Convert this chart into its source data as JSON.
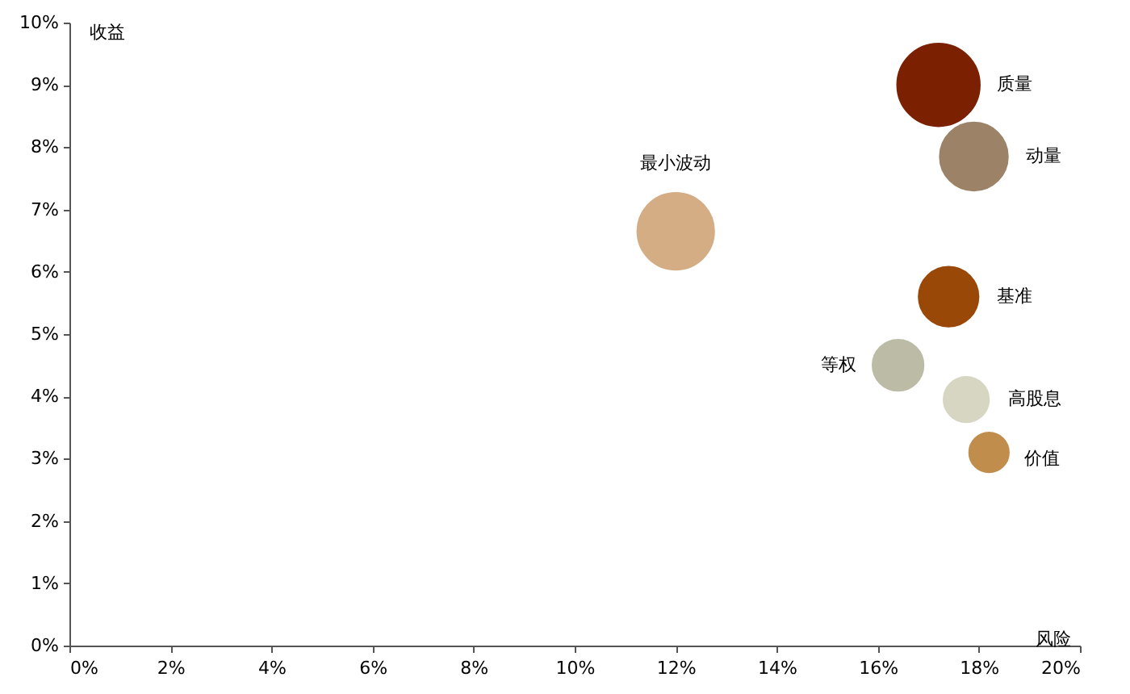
{
  "chart_data": {
    "type": "bubble",
    "xlabel": "风险",
    "ylabel": "收益",
    "xlim": [
      0,
      20
    ],
    "ylim": [
      0,
      10
    ],
    "xticks": [
      {
        "value": 0,
        "label": "0%"
      },
      {
        "value": 2,
        "label": "2%"
      },
      {
        "value": 4,
        "label": "4%"
      },
      {
        "value": 6,
        "label": "6%"
      },
      {
        "value": 8,
        "label": "8%"
      },
      {
        "value": 10,
        "label": "10%"
      },
      {
        "value": 12,
        "label": "12%"
      },
      {
        "value": 14,
        "label": "14%"
      },
      {
        "value": 16,
        "label": "16%"
      },
      {
        "value": 18,
        "label": "18%"
      },
      {
        "value": 20,
        "label": "20%"
      }
    ],
    "yticks": [
      {
        "value": 0,
        "label": "0%"
      },
      {
        "value": 1,
        "label": "1%"
      },
      {
        "value": 2,
        "label": "2%"
      },
      {
        "value": 3,
        "label": "3%"
      },
      {
        "value": 4,
        "label": "4%"
      },
      {
        "value": 5,
        "label": "5%"
      },
      {
        "value": 6,
        "label": "6%"
      },
      {
        "value": 7,
        "label": "7%"
      },
      {
        "value": 8,
        "label": "8%"
      },
      {
        "value": 9,
        "label": "9%"
      },
      {
        "value": 10,
        "label": "10%"
      }
    ],
    "grid": false,
    "series": [
      {
        "name": "质量",
        "color": "#7b2000",
        "x": [
          17.2
        ],
        "values": [
          9.0
        ],
        "sizes": [
          1
        ]
      },
      {
        "name": "动量",
        "color": "#9c8266",
        "x": [
          17.9
        ],
        "values": [
          7.85
        ],
        "sizes": [
          0.69
        ]
      },
      {
        "name": "最小波动",
        "color": "#d4ad84",
        "x": [
          12.0
        ],
        "values": [
          6.65
        ],
        "sizes": [
          0.87
        ]
      },
      {
        "name": "基准",
        "color": "#9a4808",
        "x": [
          17.4
        ],
        "values": [
          5.6
        ],
        "sizes": [
          0.54
        ]
      },
      {
        "name": "等权",
        "color": "#bbbba6",
        "x": [
          16.4
        ],
        "values": [
          4.5
        ],
        "sizes": [
          0.4
        ]
      },
      {
        "name": "高股息",
        "color": "#d6d6c2",
        "x": [
          17.75
        ],
        "values": [
          3.95
        ],
        "sizes": [
          0.32
        ]
      },
      {
        "name": "价值",
        "color": "#c18d4d",
        "x": [
          18.2
        ],
        "values": [
          3.1
        ],
        "sizes": [
          0.25
        ]
      }
    ]
  }
}
